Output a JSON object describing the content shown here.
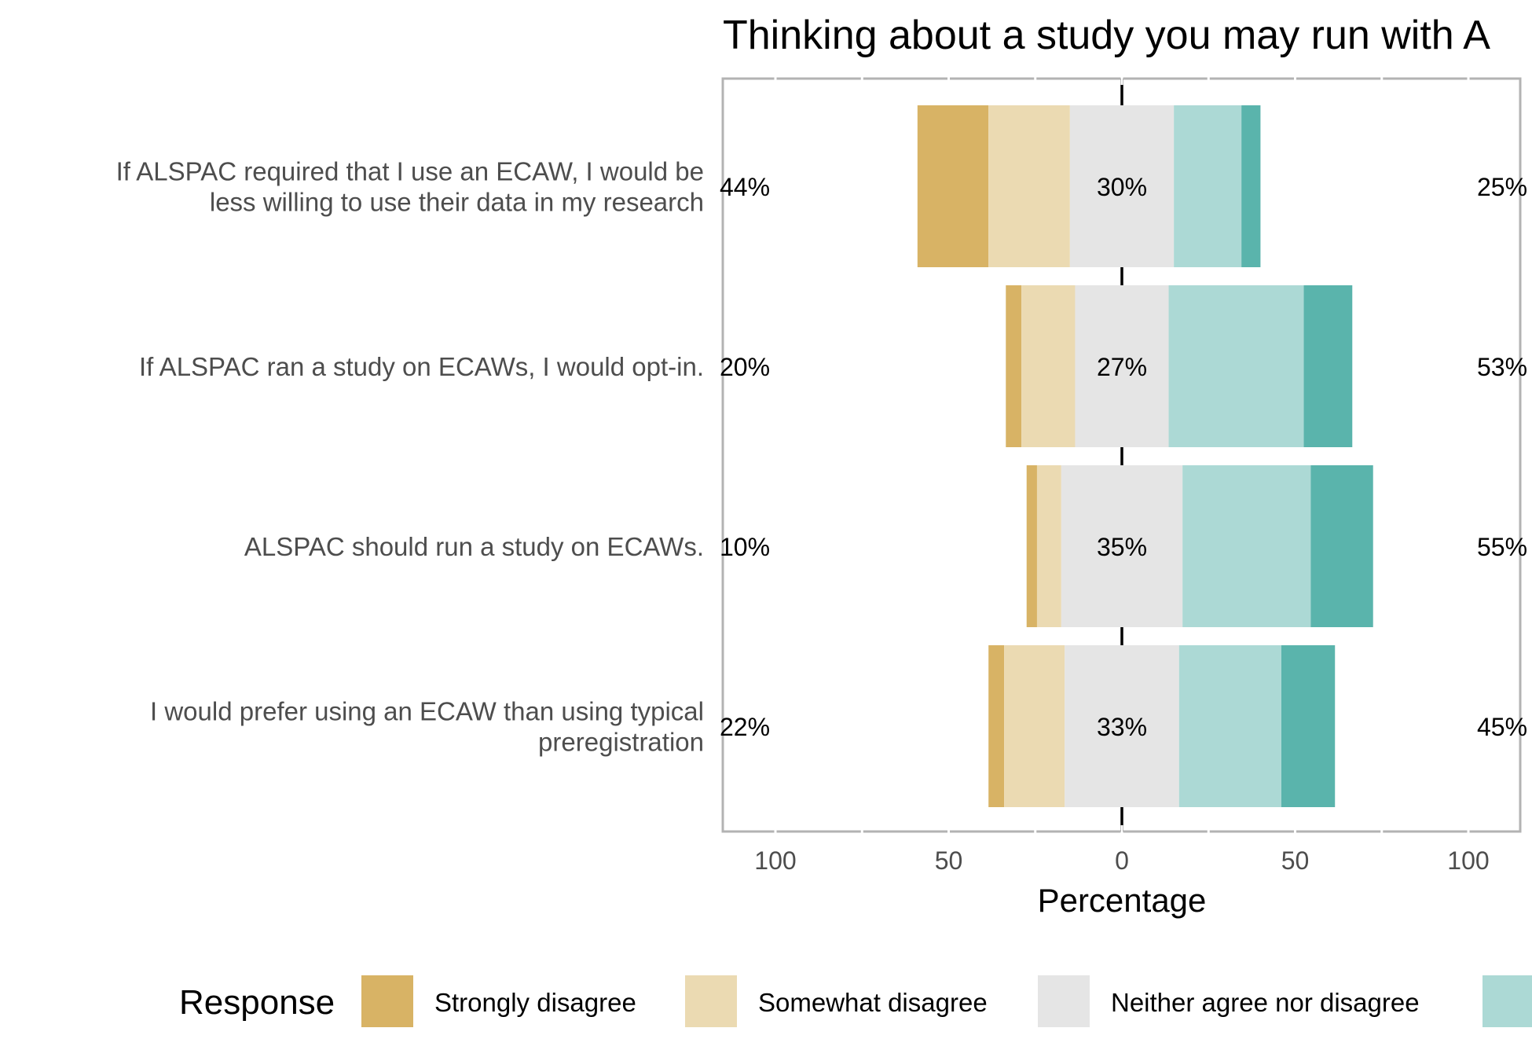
{
  "chart_data": {
    "type": "bar",
    "subtype": "diverging-stacked-likert",
    "title": "Thinking about a study you may run with A",
    "xlabel": "Percentage",
    "ylabel": "",
    "xlim": [
      -115,
      115
    ],
    "x_ticks": [
      -100,
      -50,
      0,
      50,
      100
    ],
    "x_tick_labels": [
      "100",
      "50",
      "0",
      "50",
      "100"
    ],
    "grid": false,
    "legend_title": "Response",
    "legend_position": "bottom",
    "categories": [
      [
        "If ALSPAC required that I use an ECAW, I would be",
        "less willing to use their data in my research"
      ],
      [
        "If ALSPAC ran a study on ECAWs, I would opt-in."
      ],
      [
        "ALSPAC should run a study on ECAWs."
      ],
      [
        "I would prefer using an ECAW than using typical",
        "preregistration"
      ]
    ],
    "series": [
      {
        "name": "Strongly disagree",
        "color": "#D8B365",
        "values": [
          20.5,
          4.5,
          3.0,
          4.5
        ]
      },
      {
        "name": "Somewhat disagree",
        "color": "#EBDAB2",
        "values": [
          23.5,
          15.5,
          7.0,
          17.5
        ]
      },
      {
        "name": "Neither agree nor disagree",
        "color": "#E5E5E5",
        "values": [
          30.0,
          27.0,
          35.0,
          33.0
        ]
      },
      {
        "name": "",
        "color": "#ACD9D5",
        "values": [
          19.5,
          39.0,
          37.0,
          29.5
        ]
      },
      {
        "name": "",
        "color": "#5AB4AC",
        "values": [
          5.5,
          14.0,
          18.0,
          15.5
        ]
      }
    ],
    "left_labels": [
      "44%",
      "20%",
      "10%",
      "22%"
    ],
    "center_labels": [
      "30%",
      "27%",
      "35%",
      "33%"
    ],
    "right_labels": [
      "25%",
      "53%",
      "55%",
      "45%"
    ]
  }
}
